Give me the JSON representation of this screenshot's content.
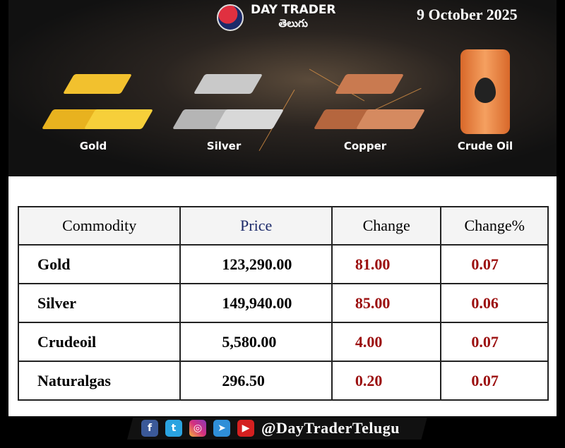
{
  "header": {
    "brand": "DAY TRADER",
    "brand_sub": "తెలుగు",
    "date": "9 October 2025"
  },
  "commodities": [
    {
      "label": "Gold",
      "color": "#f2c12e"
    },
    {
      "label": "Silver",
      "color": "#c9c9c9"
    },
    {
      "label": "Copper",
      "color": "#c97a50"
    },
    {
      "label": "Crude Oil",
      "color": "#f08a40"
    }
  ],
  "table": {
    "headers": [
      "Commodity",
      "Price",
      "Change",
      "Change%"
    ],
    "rows": [
      {
        "commodity": "Gold",
        "price": "123,290.00",
        "change": "81.00",
        "change_pct": "0.07"
      },
      {
        "commodity": "Silver",
        "price": "149,940.00",
        "change": "85.00",
        "change_pct": "0.06"
      },
      {
        "commodity": "Crudeoil",
        "price": "5,580.00",
        "change": "4.00",
        "change_pct": "0.07"
      },
      {
        "commodity": "Naturalgas",
        "price": "296.50",
        "change": "0.20",
        "change_pct": "0.07"
      }
    ]
  },
  "footer": {
    "handle": "@DayTraderTelugu",
    "icons": [
      "facebook-icon",
      "twitter-icon",
      "instagram-icon",
      "telegram-icon",
      "youtube-icon"
    ]
  }
}
